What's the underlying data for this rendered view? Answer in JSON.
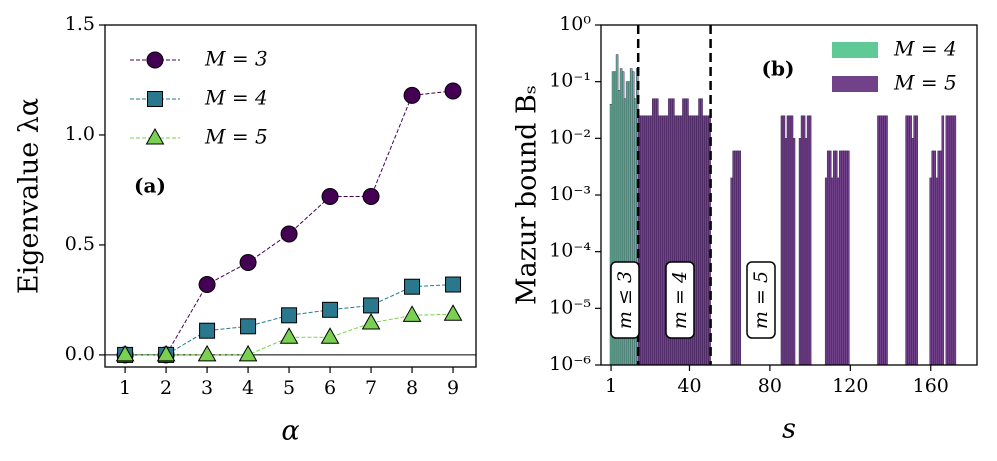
{
  "chart_data": [
    {
      "type": "line",
      "xlabel": "α",
      "ylabel": "Eigenvalue λα",
      "annotation": "(a)",
      "x": [
        1,
        2,
        3,
        4,
        5,
        6,
        7,
        8,
        9
      ],
      "xlim": [
        0.51,
        9.56
      ],
      "xticks": [
        1,
        2,
        3,
        4,
        5,
        6,
        7,
        8,
        9
      ],
      "ylim": [
        -0.055,
        1.5
      ],
      "yticks": [
        {
          "value": 0,
          "label": "0.0"
        },
        {
          "value": 0.5,
          "label": "0.5"
        },
        {
          "value": 1,
          "label": "1.0"
        },
        {
          "value": 1.5,
          "label": "1.5"
        }
      ],
      "hline": 0,
      "legend": "upper left",
      "series": [
        {
          "name": "M = 3",
          "color": "#440154",
          "marker": "circle",
          "values": [
            0,
            0,
            0.32,
            0.42,
            0.55,
            0.72,
            0.72,
            1.18,
            1.2
          ]
        },
        {
          "name": "M = 4",
          "color": "#2a788e",
          "marker": "square",
          "values": [
            0,
            0,
            0.11,
            0.13,
            0.18,
            0.205,
            0.225,
            0.31,
            0.32
          ]
        },
        {
          "name": "M = 5",
          "color": "#7ad151",
          "marker": "triangle",
          "values": [
            0,
            0,
            0,
            0,
            0.08,
            0.08,
            0.145,
            0.18,
            0.185
          ]
        }
      ]
    },
    {
      "type": "bar",
      "log": true,
      "xlabel": "s",
      "ylabel": "Mazur bound Bₛ",
      "annotation": "(b)",
      "regions": [
        "m ≤ 3",
        "m = 4",
        "m = 5"
      ],
      "xlim": [
        -4,
        183
      ],
      "xticks": [
        1,
        40,
        80,
        120,
        160
      ],
      "ylim": [
        1e-06,
        1
      ],
      "yticks": [
        {
          "value": 1e-06,
          "label": "10⁻⁶"
        },
        {
          "value": 1e-05,
          "label": "10⁻⁵"
        },
        {
          "value": 0.0001,
          "label": "10⁻⁴"
        },
        {
          "value": 0.001,
          "label": "10⁻³"
        },
        {
          "value": 0.01,
          "label": "10⁻²"
        },
        {
          "value": 0.1,
          "label": "10⁻¹"
        },
        {
          "value": 1,
          "label": "10⁰"
        }
      ],
      "vlines": [
        14.5,
        50.5
      ],
      "legend": "upper right",
      "series": [
        {
          "name": "M = 4",
          "color": "#5fca95",
          "x": [
            1,
            2,
            3,
            4,
            5,
            6,
            7,
            8,
            9,
            10,
            11,
            12,
            13,
            14
          ],
          "values": [
            0.04,
            0.15,
            0.15,
            0.3,
            0.07,
            0.17,
            0.15,
            0.05,
            0.1,
            0.1,
            0.17,
            0.15,
            0.05,
            0.17
          ]
        },
        {
          "name": "M = 5",
          "color": "#71418a",
          "x": [
            15,
            16,
            17,
            18,
            19,
            20,
            21,
            22,
            23,
            24,
            25,
            26,
            27,
            28,
            29,
            30,
            31,
            32,
            33,
            34,
            35,
            36,
            37,
            38,
            39,
            40,
            41,
            42,
            43,
            44,
            45,
            46,
            47,
            48,
            49,
            50,
            61,
            62,
            63,
            64,
            65,
            86,
            87,
            88,
            89,
            90,
            91,
            92,
            95,
            96,
            97,
            98,
            99,
            100,
            108,
            109,
            110,
            111,
            112,
            113,
            114,
            115,
            116,
            117,
            118,
            119,
            134,
            135,
            136,
            137,
            138,
            148,
            149,
            150,
            151,
            152,
            153,
            160,
            161,
            162,
            163,
            164,
            165,
            166,
            168,
            169,
            170,
            171,
            172
          ],
          "values": [
            0.025,
            0.025,
            0.025,
            0.025,
            0.025,
            0.025,
            0.025,
            0.05,
            0.05,
            0.05,
            0.025,
            0.025,
            0.025,
            0.025,
            0.025,
            0.05,
            0.05,
            0.05,
            0.025,
            0.025,
            0.025,
            0.025,
            0.05,
            0.05,
            0.05,
            0.025,
            0.025,
            0.025,
            0.025,
            0.025,
            0.05,
            0.05,
            0.025,
            0.025,
            0.025,
            0.025,
            0.002,
            0.006,
            0.006,
            0.006,
            0.006,
            0.025,
            0.025,
            0.01,
            0.025,
            0.025,
            0.025,
            0.01,
            0.01,
            0.025,
            0.025,
            0.01,
            0.025,
            0.025,
            0.002,
            0.006,
            0.006,
            0.002,
            0.006,
            0.006,
            0.002,
            0.006,
            0.006,
            0.006,
            0.006,
            0.006,
            0.025,
            0.025,
            0.025,
            0.025,
            0.025,
            0.025,
            0.025,
            0.025,
            0.01,
            0.025,
            0.025,
            0.002,
            0.006,
            0.006,
            0.002,
            0.006,
            0.006,
            0.025,
            0.025,
            0.025,
            0.025,
            0.025,
            0.025
          ]
        }
      ]
    }
  ]
}
